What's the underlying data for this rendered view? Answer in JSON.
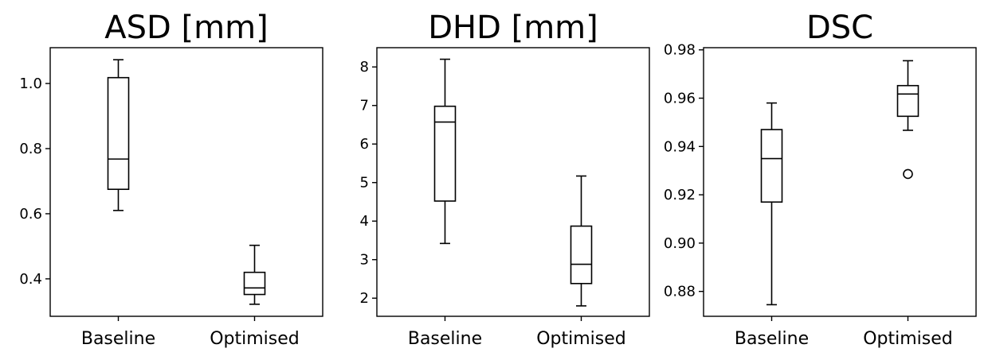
{
  "chart_data": [
    {
      "type": "box",
      "title": "ASD [mm]",
      "categories": [
        "Baseline",
        "Optimised"
      ],
      "ylim": [
        0.285,
        1.11
      ],
      "yticks": [
        0.4,
        0.6,
        0.8,
        1.0
      ],
      "ytick_labels": [
        "0.4",
        "0.6",
        "0.8",
        "1.0"
      ],
      "boxes": [
        {
          "whisker_low": 0.61,
          "q1": 0.675,
          "median": 0.768,
          "q3": 1.018,
          "whisker_high": 1.073,
          "outliers": []
        },
        {
          "whisker_low": 0.322,
          "q1": 0.352,
          "median": 0.372,
          "q3": 0.42,
          "whisker_high": 0.503,
          "outliers": []
        }
      ]
    },
    {
      "type": "box",
      "title": "DHD [mm]",
      "categories": [
        "Baseline",
        "Optimised"
      ],
      "ylim": [
        1.53,
        8.5
      ],
      "yticks": [
        2,
        3,
        4,
        5,
        6,
        7,
        8
      ],
      "ytick_labels": [
        "2",
        "3",
        "4",
        "5",
        "6",
        "7",
        "8"
      ],
      "boxes": [
        {
          "whisker_low": 3.42,
          "q1": 4.52,
          "median": 6.57,
          "q3": 6.98,
          "whisker_high": 8.2,
          "outliers": []
        },
        {
          "whisker_low": 1.8,
          "q1": 2.38,
          "median": 2.88,
          "q3": 3.87,
          "whisker_high": 5.17,
          "outliers": []
        }
      ]
    },
    {
      "type": "box",
      "title": "DSC",
      "categories": [
        "Baseline",
        "Optimised"
      ],
      "ylim": [
        0.8697,
        0.9809
      ],
      "yticks": [
        0.88,
        0.9,
        0.92,
        0.94,
        0.96,
        0.98
      ],
      "ytick_labels": [
        "0.88",
        "0.90",
        "0.92",
        "0.94",
        "0.96",
        "0.98"
      ],
      "boxes": [
        {
          "whisker_low": 0.8745,
          "q1": 0.917,
          "median": 0.935,
          "q3": 0.947,
          "whisker_high": 0.958,
          "outliers": []
        },
        {
          "whisker_low": 0.9467,
          "q1": 0.9525,
          "median": 0.9617,
          "q3": 0.9652,
          "whisker_high": 0.9755,
          "outliers": [
            0.9286
          ]
        }
      ]
    }
  ]
}
